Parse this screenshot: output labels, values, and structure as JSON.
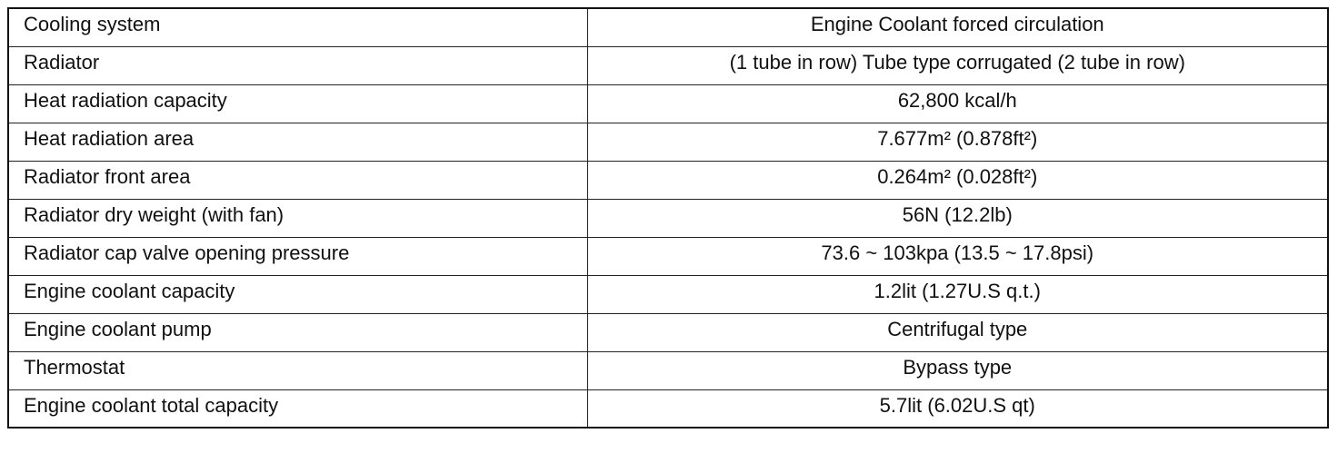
{
  "table": {
    "rows": [
      [
        "Cooling system",
        "Engine Coolant forced circulation"
      ],
      [
        "Radiator",
        "(1 tube in row) Tube type corrugated (2 tube in row)"
      ],
      [
        "Heat radiation capacity",
        "62,800 kcal/h"
      ],
      [
        "Heat radiation area",
        "7.677m² (0.878ft²)"
      ],
      [
        "Radiator front area",
        "0.264m² (0.028ft²)"
      ],
      [
        "Radiator dry weight (with fan)",
        "56N (12.2lb)"
      ],
      [
        "Radiator cap valve opening pressure",
        "73.6 ~ 103kpa (13.5 ~ 17.8psi)"
      ],
      [
        "Engine coolant capacity",
        "1.2lit (1.27U.S q.t.)"
      ],
      [
        "Engine coolant pump",
        "Centrifugal type"
      ],
      [
        "Thermostat",
        "Bypass type"
      ],
      [
        "Engine coolant total capacity",
        "5.7lit (6.02U.S qt)"
      ]
    ]
  }
}
